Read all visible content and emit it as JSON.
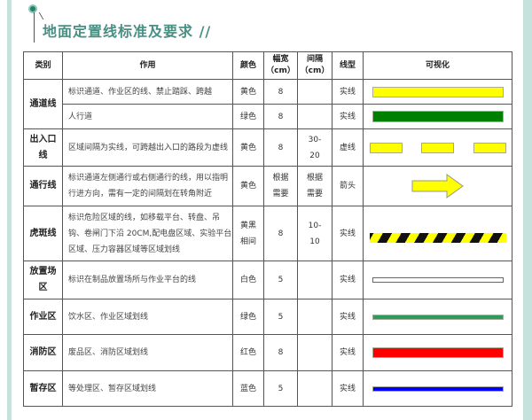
{
  "title": "地面定置线标准及要求 //",
  "headers": {
    "category": "类别",
    "usage": "作用",
    "color": "颜色",
    "width": "幅宽（cm）",
    "interval": "间隔（cm）",
    "type": "线型",
    "visual": "可视化"
  },
  "rows": [
    {
      "category": "通道线",
      "usage": "标识通道、作业区的线、禁止踏踩、跨越",
      "color": "黄色",
      "width": "8",
      "interval": "",
      "type": "实线",
      "visual": "solid",
      "hex": "#ffff00"
    },
    {
      "category": "",
      "usage": "人行道",
      "color": "绿色",
      "width": "8",
      "interval": "",
      "type": "实线",
      "visual": "solid",
      "hex": "#008000"
    },
    {
      "category": "出入口线",
      "usage": "区域间隔为实线，可跨越出入口的路段为虚线",
      "color": "黄色",
      "width": "8",
      "interval": "30-20",
      "type": "虚线",
      "visual": "dashed",
      "hex": "#ffff00"
    },
    {
      "category": "通行线",
      "usage": "标识通道左侧通行或右侧通行的线，用以指明行进方向，需有一定的间隔划在转角附近",
      "color": "黄色",
      "width": "根据需要",
      "interval": "根据需要",
      "type": "箭头",
      "visual": "arrow",
      "hex": "#ffff00"
    },
    {
      "category": "虎斑线",
      "usage": "标识危险区域的线，如移载平台、转盘、吊钩、卷闸门下沿 20CM,配电盘区域、实验平台区域、压力容器区域等区域划线",
      "color": "黄黑相间",
      "width": "8",
      "interval": "10-10",
      "type": "实线",
      "visual": "stripe",
      "hex": "#ffff00"
    },
    {
      "category": "放置场区",
      "usage": "标识在制品放置场所与作业平台的线",
      "color": "白色",
      "width": "5",
      "interval": "",
      "type": "实线",
      "visual": "solid",
      "hex": "#ffffff"
    },
    {
      "category": "作业区",
      "usage": "饮水区、作业区域划线",
      "color": "绿色",
      "width": "5",
      "interval": "",
      "type": "实线",
      "visual": "solid",
      "hex": "#2e9a5c"
    },
    {
      "category": "消防区",
      "usage": "废品区、消防区域划线",
      "color": "红色",
      "width": "8",
      "interval": "",
      "type": "实线",
      "visual": "solid",
      "hex": "#ff0000"
    },
    {
      "category": "暂存区",
      "usage": "等处理区、暂存区域划线",
      "color": "蓝色",
      "width": "5",
      "interval": "",
      "type": "实线",
      "visual": "solid",
      "hex": "#0000ff"
    }
  ]
}
